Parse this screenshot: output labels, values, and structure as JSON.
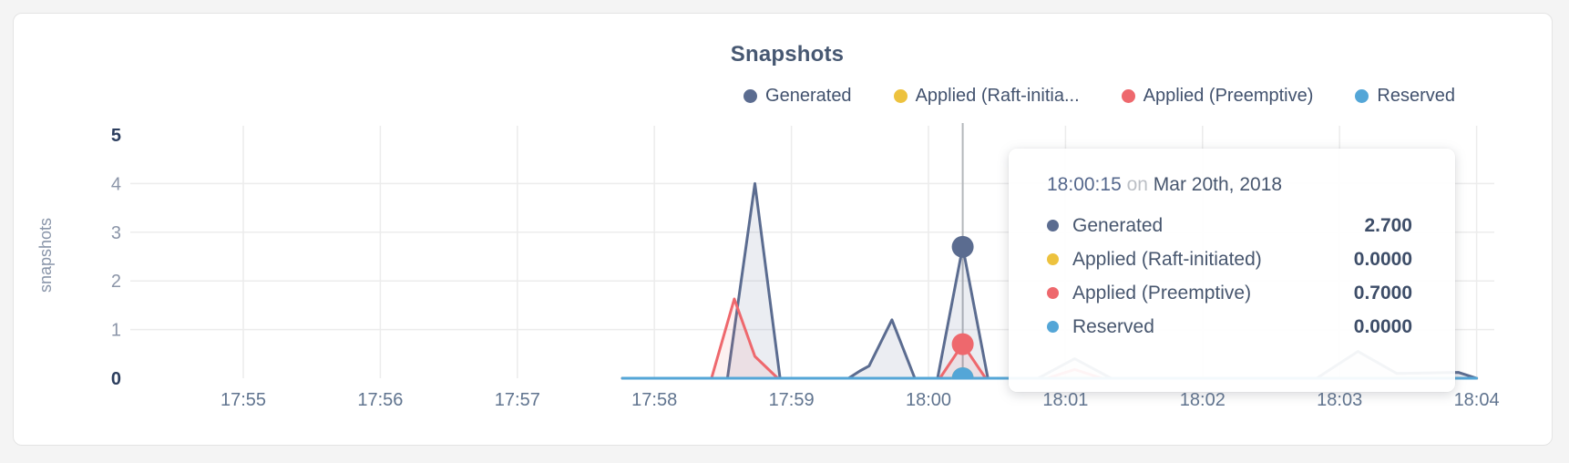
{
  "title": {
    "text": "Snapshots"
  },
  "legend": {
    "items": [
      {
        "label": "Generated",
        "color": "#5b6c90"
      },
      {
        "label": "Applied (Raft-initia...",
        "color": "#edc23e"
      },
      {
        "label": "Applied (Preemptive)",
        "color": "#ee686d"
      },
      {
        "label": "Reserved",
        "color": "#54a6d7"
      }
    ]
  },
  "tooltip": {
    "time": "18:00:15",
    "separator": "on",
    "date": "Mar 20th, 2018",
    "rows": [
      {
        "label": "Generated",
        "color": "#5b6c90",
        "value": "2.700"
      },
      {
        "label": "Applied (Raft-initiated)",
        "color": "#edc23e",
        "value": "0.0000"
      },
      {
        "label": "Applied (Preemptive)",
        "color": "#ee686d",
        "value": "0.7000"
      },
      {
        "label": "Reserved",
        "color": "#54a6d7",
        "value": "0.0000"
      }
    ]
  },
  "chart_data": {
    "type": "area",
    "title": "Snapshots",
    "xlabel": "",
    "ylabel": "snapshots",
    "ylim": [
      0,
      5
    ],
    "y_ticks": [
      0,
      1,
      2,
      3,
      4,
      5
    ],
    "y_gridlines": [
      1,
      2,
      3,
      4
    ],
    "x_ticks": [
      "17:55",
      "17:56",
      "17:57",
      "17:58",
      "17:59",
      "18:00",
      "18:01",
      "18:02",
      "18:03",
      "18:04"
    ],
    "x_tick_seconds": [
      0,
      60,
      120,
      180,
      240,
      300,
      360,
      420,
      480,
      540
    ],
    "x_range_seconds": [
      0,
      540
    ],
    "grid": true,
    "legend_position": "top-right",
    "colors": {
      "grid": "#ececec",
      "hover_line": "#b4b7bb",
      "tick_minor": "#8b95a8",
      "tick_major": "#2c3e5e",
      "x_tick": "#60748f",
      "axis_label": "#8995a9"
    },
    "series": [
      {
        "name": "Generated",
        "color": "#5b6c90",
        "fill": "rgba(91,108,144,0.12)",
        "points": [
          [
            166,
            0
          ],
          [
            212,
            0
          ],
          [
            224,
            4.0
          ],
          [
            235,
            0
          ],
          [
            265,
            0
          ],
          [
            270,
            0.15
          ],
          [
            274,
            0.25
          ],
          [
            284,
            1.2
          ],
          [
            294,
            0
          ],
          [
            304,
            0
          ],
          [
            315,
            2.7
          ],
          [
            326,
            0
          ],
          [
            348,
            0
          ],
          [
            364,
            0.4
          ],
          [
            380,
            0
          ],
          [
            470,
            0
          ],
          [
            488,
            0.55
          ],
          [
            505,
            0.1
          ],
          [
            532,
            0.12
          ],
          [
            540,
            0
          ]
        ]
      },
      {
        "name": "Applied (Raft-initiated)",
        "color": "#edc23e",
        "fill": "none",
        "points": [
          [
            166,
            0
          ],
          [
            540,
            0
          ]
        ]
      },
      {
        "name": "Applied (Preemptive)",
        "color": "#ee686d",
        "fill": "rgba(238,104,109,0.10)",
        "points": [
          [
            166,
            0
          ],
          [
            205,
            0
          ],
          [
            215,
            1.63
          ],
          [
            224,
            0.45
          ],
          [
            234,
            0
          ],
          [
            305,
            0
          ],
          [
            315,
            0.7
          ],
          [
            325,
            0
          ],
          [
            352,
            0
          ],
          [
            364,
            0.18
          ],
          [
            376,
            0
          ],
          [
            540,
            0
          ]
        ]
      },
      {
        "name": "Reserved",
        "color": "#54a6d7",
        "fill": "none",
        "points": [
          [
            166,
            0
          ],
          [
            540,
            0
          ]
        ]
      }
    ],
    "hover": {
      "time_seconds": 315,
      "label": "18:00:15",
      "values": [
        {
          "series": "Generated",
          "value": 2.7
        },
        {
          "series": "Applied (Raft-initiated)",
          "value": 0.0
        },
        {
          "series": "Applied (Preemptive)",
          "value": 0.7
        },
        {
          "series": "Reserved",
          "value": 0.0
        }
      ]
    }
  }
}
